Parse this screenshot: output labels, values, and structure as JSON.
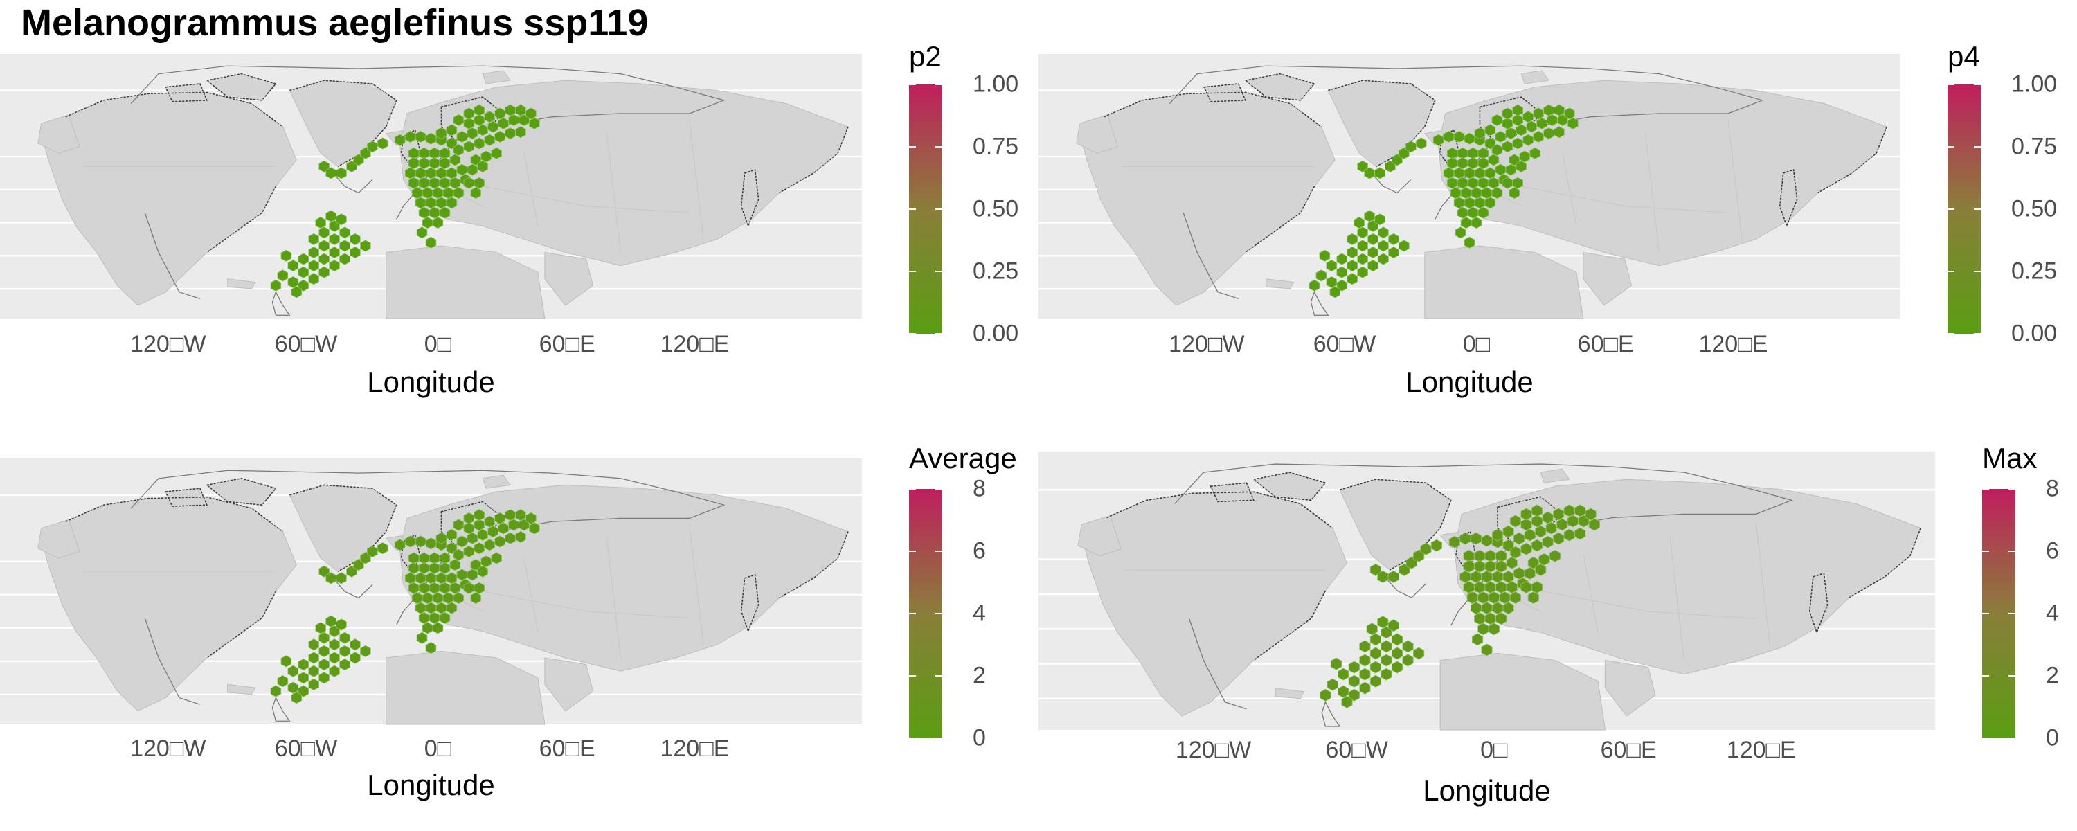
{
  "title": "Melanogrammus aeglefinus ssp119",
  "colors": {
    "panel_background": "#ebebeb",
    "land": "#d4d4d4",
    "land_border": "#bdbdbd",
    "coastline": "#3c3c3c",
    "gridline": "#ffffff",
    "low": "#5a9e12",
    "mid": "#8a7e3a",
    "high": "#c01e5e"
  },
  "chart_data": [
    {
      "type": "map",
      "id": "p2",
      "xlabel": "Longitude",
      "x_ticks": [
        "120□W",
        "60□W",
        "0□",
        "60□E",
        "120□E"
      ],
      "legend": {
        "title": "p2",
        "ticks": [
          "1.00",
          "0.75",
          "0.50",
          "0.25",
          "0.00"
        ],
        "range": [
          0,
          1
        ]
      },
      "cell_value_level": 0.0
    },
    {
      "type": "map",
      "id": "p4",
      "xlabel": "Longitude",
      "x_ticks": [
        "120□W",
        "60□W",
        "0□",
        "60□E",
        "120□E"
      ],
      "legend": {
        "title": "p4",
        "ticks": [
          "1.00",
          "0.75",
          "0.50",
          "0.25",
          "0.00"
        ],
        "range": [
          0,
          1
        ]
      },
      "cell_value_level": 0.0
    },
    {
      "type": "map",
      "id": "average",
      "xlabel": "Longitude",
      "x_ticks": [
        "120□W",
        "60□W",
        "0□",
        "60□E",
        "120□E"
      ],
      "legend": {
        "title": "Average",
        "ticks": [
          "8",
          "6",
          "4",
          "2",
          "0"
        ],
        "range": [
          0,
          8
        ]
      },
      "cell_value_level": 0.05
    },
    {
      "type": "map",
      "id": "max",
      "xlabel": "Longitude",
      "x_ticks": [
        "120□W",
        "60□W",
        "0□",
        "60□E",
        "120□E"
      ],
      "legend": {
        "title": "Max",
        "ticks": [
          "8",
          "6",
          "4",
          "2",
          "0"
        ],
        "range": [
          0,
          8
        ]
      },
      "cell_value_level": 0.1
    }
  ]
}
